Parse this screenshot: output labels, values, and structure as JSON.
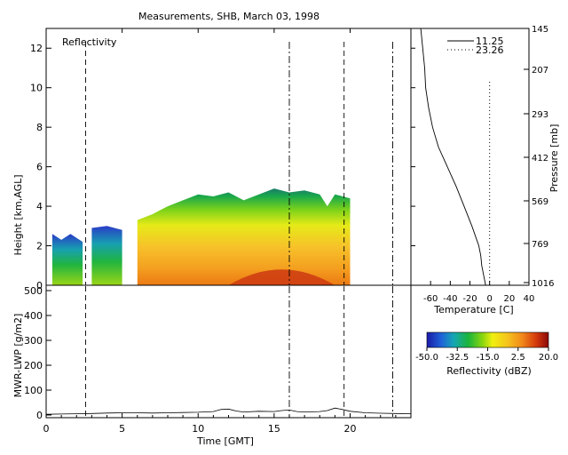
{
  "chart_data": [
    {
      "type": "heatmap",
      "title": "Measurements, SHB, March 03, 1998",
      "panel_label": "Reflectivity",
      "xlabel": "Time [GMT]",
      "ylabel": "Height [km,AGL]",
      "xlim": [
        0,
        24
      ],
      "ylim": [
        0,
        13
      ],
      "xticks": [
        0,
        5,
        10,
        15,
        20
      ],
      "yticks": [
        0,
        2,
        4,
        6,
        8,
        10,
        12
      ],
      "echo_top_km": {
        "time": [
          0.4,
          1.0,
          1.6,
          2.4,
          2.6,
          3.0,
          4.0,
          5.0,
          5.7,
          6.0,
          7.0,
          7.5,
          8.0,
          9.0,
          10.0,
          11.0,
          12.0,
          13.0,
          14.0,
          15.0,
          16.0,
          17.0,
          18.0,
          18.5,
          19.0,
          20.0
        ],
        "top": [
          2.6,
          2.3,
          2.6,
          2.2,
          0.3,
          2.9,
          3.0,
          2.8,
          0.3,
          3.3,
          3.6,
          3.8,
          4.0,
          4.3,
          4.6,
          4.5,
          4.7,
          4.3,
          4.6,
          4.9,
          4.7,
          4.8,
          4.6,
          4.0,
          4.6,
          4.4
        ]
      },
      "event_lines": [
        {
          "time": 2.6,
          "style": "dashed"
        },
        {
          "time": 16.0,
          "style": "dash-dot"
        },
        {
          "time": 19.6,
          "style": "dashed"
        },
        {
          "time": 22.8,
          "style": "dash-dot"
        }
      ]
    },
    {
      "type": "line",
      "name": "lwp"
    }
  ],
  "lwp": {
    "ylabel": "MWR-LWP [g/m2]",
    "ylim": [
      0,
      500
    ],
    "yticks": [
      0,
      100,
      200,
      300,
      400,
      500
    ],
    "x": [
      0,
      1,
      2,
      3,
      4,
      5,
      6,
      7,
      8,
      9,
      10,
      11,
      11.5,
      12,
      12.5,
      13,
      14,
      15,
      15.5,
      16,
      16.5,
      17,
      18,
      18.5,
      19,
      19.5,
      20,
      21,
      22,
      23,
      24
    ],
    "y": [
      3,
      4,
      5,
      6,
      8,
      9,
      9,
      8,
      9,
      10,
      11,
      14,
      22,
      24,
      16,
      12,
      15,
      14,
      18,
      20,
      14,
      12,
      14,
      18,
      28,
      22,
      15,
      9,
      7,
      6,
      5
    ]
  },
  "sounding": {
    "xlabel": "Temperature [C]",
    "ylabel_right": "Pressure [mb]",
    "xlim": [
      -80,
      40
    ],
    "xticks": [
      -60,
      -40,
      -20,
      0,
      20,
      40
    ],
    "pressure_ticks": [
      "145",
      "207",
      "293",
      "412",
      "569",
      "769",
      "1016"
    ],
    "series": [
      {
        "name": "11.25",
        "style": "solid",
        "height_km": [
          0,
          0.5,
          1,
          1.5,
          2,
          3,
          4,
          5,
          6,
          7,
          8,
          9,
          10,
          11,
          12,
          13
        ],
        "temp_c": [
          -4,
          -6,
          -8,
          -9,
          -11,
          -18,
          -26,
          -34,
          -43,
          -52,
          -58,
          -62,
          -65,
          -66,
          -68,
          -70
        ]
      },
      {
        "name": "23.26",
        "style": "dotted",
        "height_km": [
          0,
          10.3
        ],
        "temp_c": [
          0,
          0
        ]
      }
    ]
  },
  "colorbar": {
    "label": "Reflectivity (dBZ)",
    "ticks": [
      "-50.0",
      "-32.5",
      "-15.0",
      "2.5",
      "20.0"
    ],
    "range": [
      -50,
      20
    ]
  },
  "colors": {
    "axis": "#000000",
    "background": "#ffffff"
  }
}
